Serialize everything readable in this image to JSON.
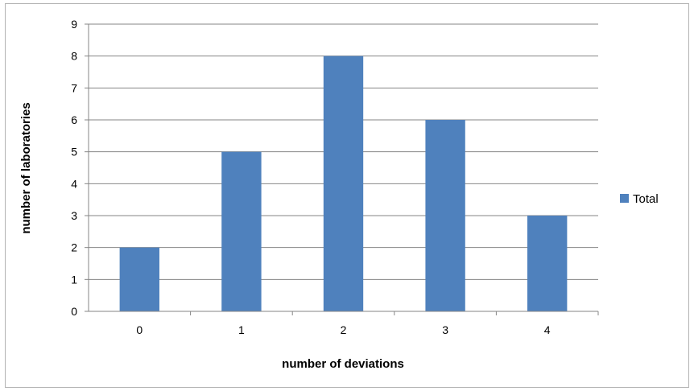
{
  "chart_data": {
    "type": "bar",
    "categories": [
      "0",
      "1",
      "2",
      "3",
      "4"
    ],
    "series": [
      {
        "name": "Total",
        "values": [
          2,
          5,
          8,
          6,
          3
        ],
        "color": "#4F81BD"
      }
    ],
    "xlabel": "number of deviations",
    "ylabel": "number of laboratories",
    "ylim": [
      0,
      9
    ],
    "yticks": [
      "0",
      "1",
      "2",
      "3",
      "4",
      "5",
      "6",
      "7",
      "8",
      "9"
    ],
    "grid": true,
    "legend": "right",
    "colors": {
      "bar": "#4F81BD",
      "grid": "#868686",
      "border": "#b3b3b3"
    }
  }
}
